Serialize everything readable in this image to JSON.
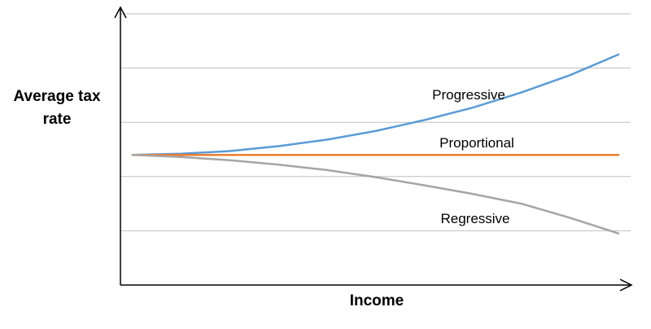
{
  "chart_data": {
    "type": "line",
    "title": "",
    "xlabel": "Income",
    "ylabel_lines": [
      "Average tax",
      "rate"
    ],
    "x": [
      0,
      1,
      2,
      3,
      4,
      5,
      6,
      7,
      8,
      9,
      10
    ],
    "ylim": [
      0,
      5
    ],
    "xlim": [
      -0.25,
      10.25
    ],
    "grid": true,
    "gridlines_y": [
      1,
      2,
      3,
      4,
      5
    ],
    "series": [
      {
        "name": "Progressive",
        "color": "#5B9BD5",
        "values": [
          2.4,
          2.42,
          2.47,
          2.56,
          2.68,
          2.84,
          3.04,
          3.27,
          3.55,
          3.87,
          4.25
        ]
      },
      {
        "name": "Proportional",
        "color": "#ED7D31",
        "values": [
          2.4,
          2.4,
          2.4,
          2.4,
          2.4,
          2.4,
          2.4,
          2.4,
          2.4,
          2.4,
          2.4
        ]
      },
      {
        "name": "Regressive",
        "color": "#A5A5A5",
        "values": [
          2.4,
          2.36,
          2.3,
          2.22,
          2.12,
          1.99,
          1.84,
          1.68,
          1.5,
          1.24,
          0.95
        ]
      }
    ]
  }
}
